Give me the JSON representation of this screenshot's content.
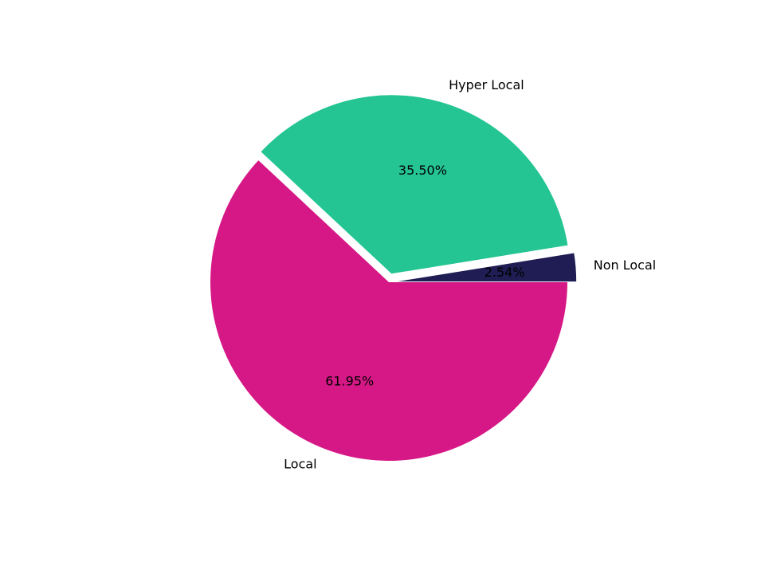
{
  "chart_data": {
    "type": "pie",
    "slices": [
      {
        "label": "Local",
        "value": 61.95,
        "pct_label": "61.95%",
        "color": "#d61886",
        "explode": 0
      },
      {
        "label": "Hyper Local",
        "value": 35.5,
        "pct_label": "35.50%",
        "color": "#24c592",
        "explode": 0.05
      },
      {
        "label": "Non Local",
        "value": 2.54,
        "pct_label": "2.54%",
        "color": "#1f1d53",
        "explode": 0.05
      }
    ],
    "start_angle_deg": 0,
    "direction": "clockwise",
    "legend": "none"
  }
}
